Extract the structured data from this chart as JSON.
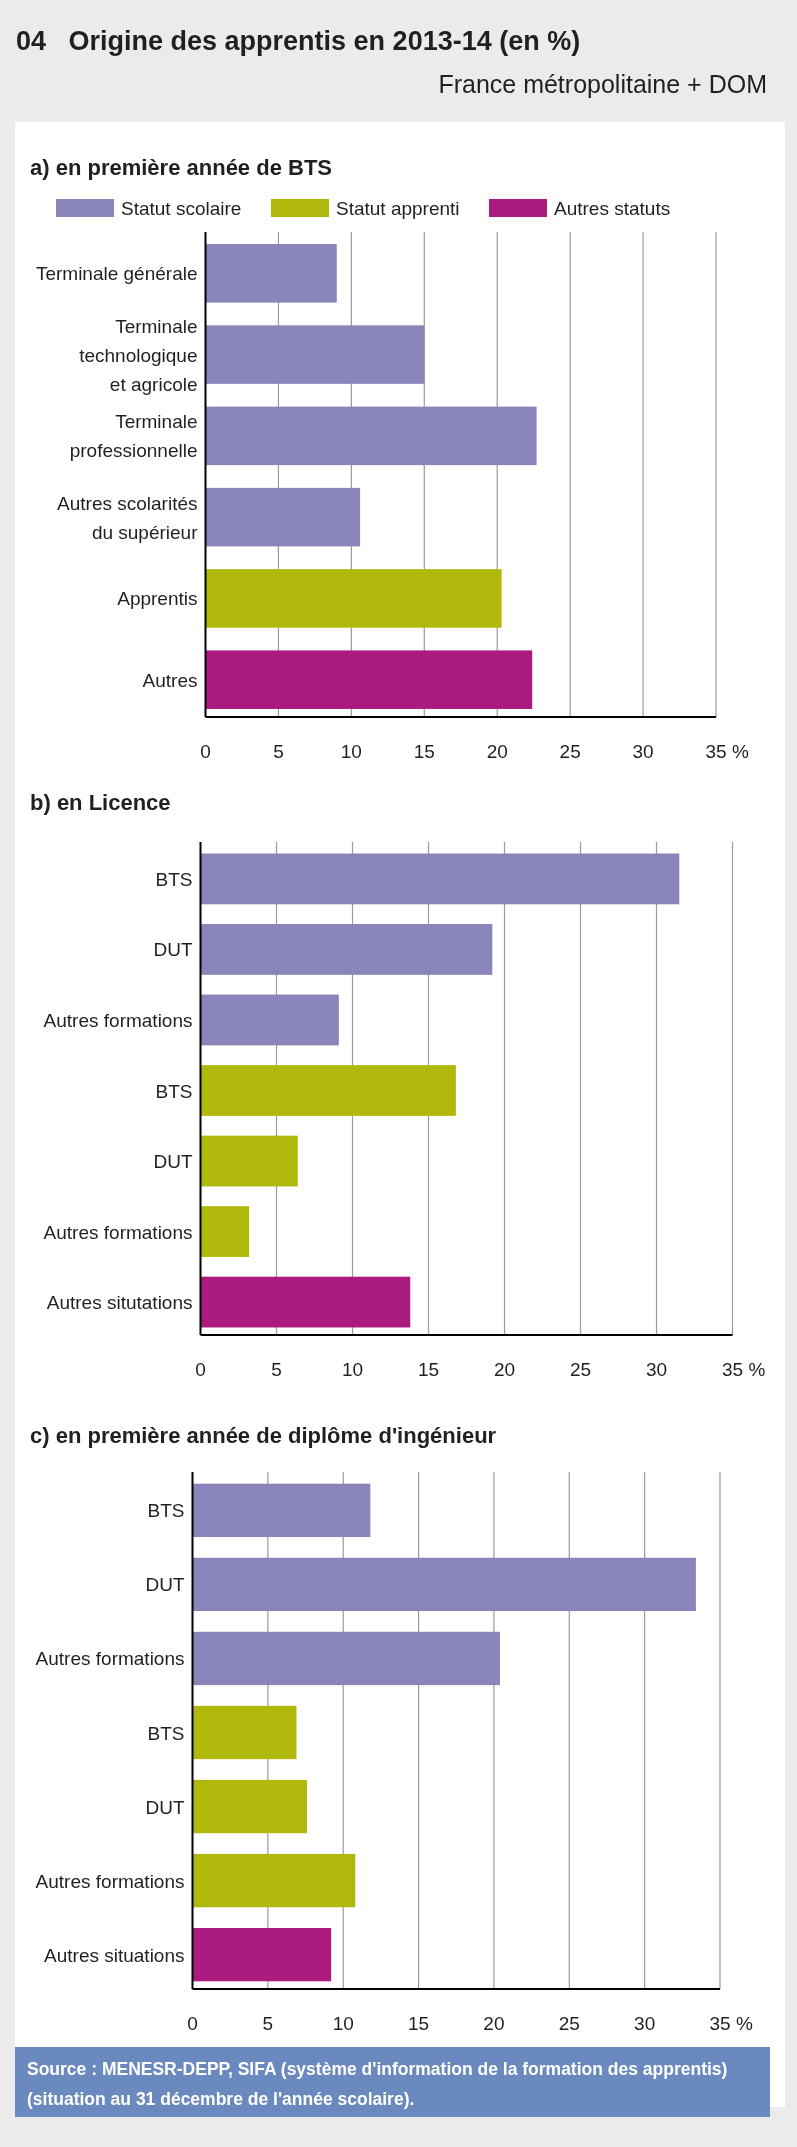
{
  "chart_data": [
    {
      "type": "bar",
      "orientation": "horizontal",
      "title": "a) en première année de BTS",
      "annotations": [
        "04   Origine des apprentis en 2013-14 (en %)",
        "France métropolitaine + DOM"
      ],
      "xlabel": "%",
      "categories": [
        "Terminale générale",
        "Terminale technologique et agricole",
        "Terminale professionnelle",
        "Autres scolarités du supérieur",
        "Apprentis",
        "Autres"
      ],
      "series": [
        {
          "name": "Statut scolaire",
          "color": "#8984b9",
          "values": [
            9.0,
            15.0,
            22.7,
            10.6,
            null,
            null
          ]
        },
        {
          "name": "Statut apprenti",
          "color": "#b1b80c",
          "values": [
            null,
            null,
            null,
            null,
            20.3,
            null
          ]
        },
        {
          "name": "Autres statuts",
          "color": "#ab1a7e",
          "values": [
            null,
            null,
            null,
            null,
            null,
            22.4
          ]
        }
      ],
      "xlim": [
        0,
        35
      ],
      "xticks": [
        0,
        5,
        10,
        15,
        20,
        25,
        30,
        35
      ],
      "grid": "x",
      "legend": "top"
    },
    {
      "type": "bar",
      "orientation": "horizontal",
      "title": "b) en Licence",
      "xlabel": "%",
      "categories": [
        "BTS",
        "DUT",
        "Autres formations",
        "BTS",
        "DUT",
        "Autres formations",
        "Autres situtations"
      ],
      "series": [
        {
          "color": "#8984b9",
          "values": [
            31.5,
            19.2,
            9.1,
            null,
            null,
            null,
            null
          ]
        },
        {
          "color": "#b1b80c",
          "values": [
            null,
            null,
            null,
            16.8,
            6.4,
            3.2,
            null
          ]
        },
        {
          "color": "#ab1a7e",
          "values": [
            null,
            null,
            null,
            null,
            null,
            null,
            13.8
          ]
        }
      ],
      "xlim": [
        0,
        35
      ],
      "xticks": [
        0,
        5,
        10,
        15,
        20,
        25,
        30,
        35
      ],
      "grid": "x"
    },
    {
      "type": "bar",
      "orientation": "horizontal",
      "title": "c) en première année de diplôme d'ingénieur",
      "xlabel": "%",
      "annotations": [
        "Source : MENESR-DEPP, SIFA (système d'information de la formation des apprentis) (situation au 31 décembre de l'année scolaire)."
      ],
      "categories": [
        "BTS",
        "DUT",
        "Autres formations",
        "BTS",
        "DUT",
        "Autres formations",
        "Autres situations"
      ],
      "series": [
        {
          "color": "#8984b9",
          "values": [
            11.8,
            33.4,
            20.4,
            null,
            null,
            null,
            null
          ]
        },
        {
          "color": "#b1b80c",
          "values": [
            null,
            null,
            null,
            6.9,
            7.6,
            10.8,
            null
          ]
        },
        {
          "color": "#ab1a7e",
          "values": [
            null,
            null,
            null,
            null,
            null,
            null,
            9.2
          ]
        }
      ],
      "xlim": [
        0,
        35
      ],
      "xticks": [
        0,
        5,
        10,
        15,
        20,
        25,
        30,
        35
      ],
      "grid": "x"
    }
  ]
}
